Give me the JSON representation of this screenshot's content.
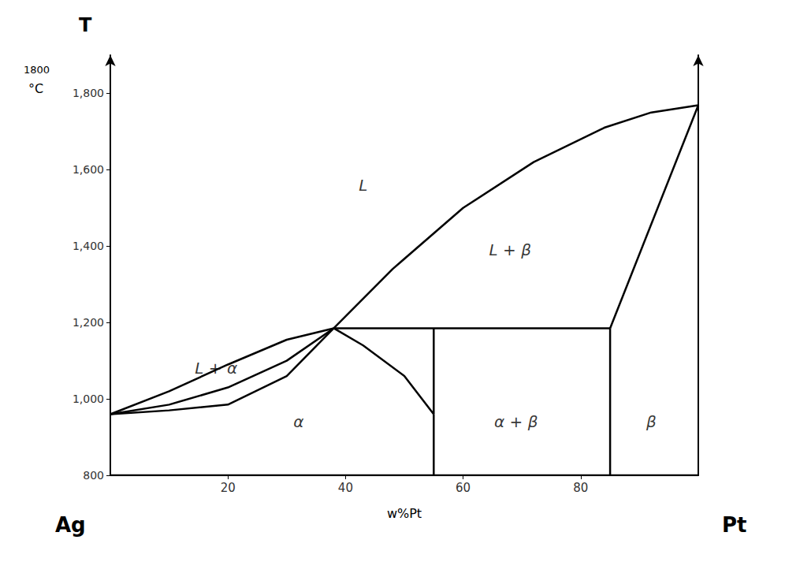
{
  "chart_data": {
    "type": "line",
    "xlabel": "w%Pt",
    "ylabel": "T",
    "outside_texts": [
      "1800",
      "°C"
    ],
    "x_end_labels": [
      "Ag",
      "Pt"
    ],
    "color": "#000000",
    "grid": false,
    "xlim": [
      0,
      100
    ],
    "ylim": [
      800,
      1900
    ],
    "xticks": [
      20,
      40,
      60,
      80
    ],
    "yticks": [
      800,
      1000,
      1200,
      1400,
      1600,
      1800
    ],
    "series": [
      {
        "x": [
          0,
          10,
          20,
          30,
          38,
          48,
          60,
          72,
          84,
          92,
          100
        ],
        "values": [
          960,
          1020,
          1090,
          1155,
          1185,
          1340,
          1500,
          1620,
          1710,
          1750,
          1769
        ]
      },
      {
        "x": [
          0,
          10,
          20,
          30,
          38
        ],
        "values": [
          960,
          985,
          1030,
          1100,
          1185
        ]
      },
      {
        "x": [
          0,
          10,
          20,
          30,
          38
        ],
        "values": [
          960,
          970,
          985,
          1060,
          1185
        ]
      },
      {
        "x": [
          38,
          85
        ],
        "values": [
          1185,
          1185
        ]
      },
      {
        "x": [
          85,
          100
        ],
        "values": [
          1185,
          1769
        ]
      },
      {
        "x": [
          38,
          43,
          50,
          55
        ],
        "values": [
          1185,
          1140,
          1060,
          960
        ]
      },
      {
        "x": [
          55,
          55
        ],
        "values": [
          800,
          960
        ]
      },
      {
        "x": [
          55,
          55
        ],
        "values": [
          960,
          1185
        ]
      },
      {
        "x": [
          85,
          85
        ],
        "values": [
          800,
          1185
        ]
      },
      {
        "x": [
          0,
          100
        ],
        "values": [
          800,
          800
        ]
      }
    ],
    "annotations": [
      {
        "text": "L",
        "x": 43,
        "y": 1560
      },
      {
        "text": "L + β",
        "x": 68,
        "y": 1390
      },
      {
        "text": "L + α",
        "x": 18,
        "y": 1080
      },
      {
        "text": "α",
        "x": 32,
        "y": 940
      },
      {
        "text": "α + β",
        "x": 69,
        "y": 940
      },
      {
        "text": "β",
        "x": 92,
        "y": 940
      }
    ]
  }
}
